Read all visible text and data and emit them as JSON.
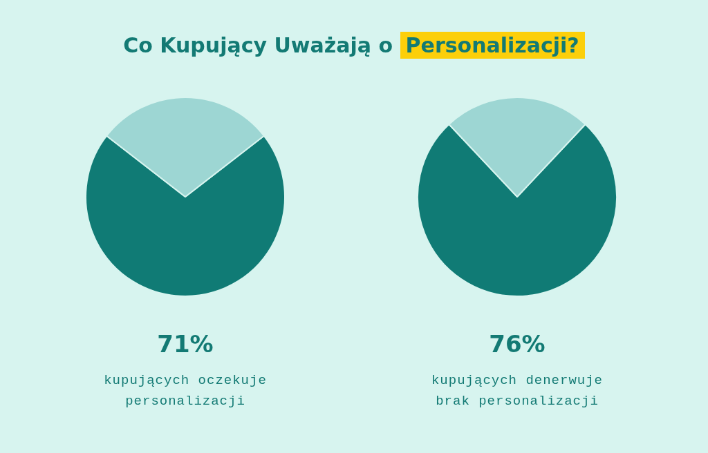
{
  "chart_data": [
    {
      "type": "pie",
      "title": "Co Kupujący Uważają o Personalizacji?",
      "categories": [
        null,
        null
      ],
      "values": [
        71,
        29
      ],
      "colors": [
        "#107b75",
        "#9dd6d3"
      ],
      "value_labels": [
        "71%",
        null
      ],
      "annotations": [
        "kupujących oczekuje personalizacji"
      ]
    },
    {
      "type": "pie",
      "categories": [
        null,
        null
      ],
      "values": [
        76,
        24
      ],
      "colors": [
        "#107b75",
        "#9dd6d3"
      ],
      "value_labels": [
        "76%",
        null
      ],
      "annotations": [
        "kupujących denerwuje brak personalizacji"
      ]
    }
  ]
}
